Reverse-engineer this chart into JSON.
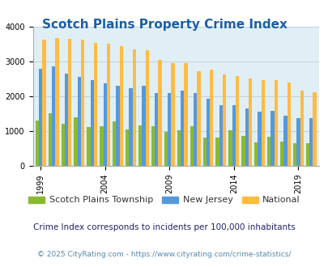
{
  "title": "Scotch Plains Property Crime Index",
  "title_color": "#1a5fa8",
  "title_fontsize": 11,
  "years": [
    1999,
    2000,
    2001,
    2002,
    2003,
    2004,
    2005,
    2006,
    2007,
    2008,
    2009,
    2010,
    2011,
    2012,
    2013,
    2014,
    2015,
    2016,
    2017,
    2018,
    2019,
    2020
  ],
  "scotch_plains": [
    1300,
    1500,
    1200,
    1400,
    1120,
    1130,
    1280,
    1050,
    1160,
    1140,
    960,
    1020,
    1140,
    800,
    810,
    1010,
    850,
    660,
    830,
    700,
    650,
    640
  ],
  "new_jersey": [
    2790,
    2850,
    2650,
    2560,
    2460,
    2370,
    2310,
    2230,
    2310,
    2080,
    2080,
    2160,
    2080,
    1920,
    1730,
    1730,
    1640,
    1560,
    1570,
    1430,
    1360,
    1360
  ],
  "national": [
    3620,
    3680,
    3650,
    3620,
    3540,
    3500,
    3440,
    3350,
    3320,
    3050,
    2960,
    2950,
    2710,
    2760,
    2620,
    2570,
    2500,
    2470,
    2460,
    2380,
    2170,
    2110
  ],
  "bar_colors": [
    "#88bb33",
    "#5599dd",
    "#ffbb44"
  ],
  "plot_bg": "#e0eff5",
  "ylim": [
    0,
    4000
  ],
  "yticks": [
    0,
    1000,
    2000,
    3000,
    4000
  ],
  "xtick_years": [
    1999,
    2004,
    2009,
    2014,
    2019
  ],
  "legend_labels": [
    "Scotch Plains Township",
    "New Jersey",
    "National"
  ],
  "footnote1": "Crime Index corresponds to incidents per 100,000 inhabitants",
  "footnote2": "© 2025 CityRating.com - https://www.cityrating.com/crime-statistics/",
  "footnote1_color": "#222266",
  "footnote2_color": "#5588aa",
  "grid_color": "#bbccdd"
}
